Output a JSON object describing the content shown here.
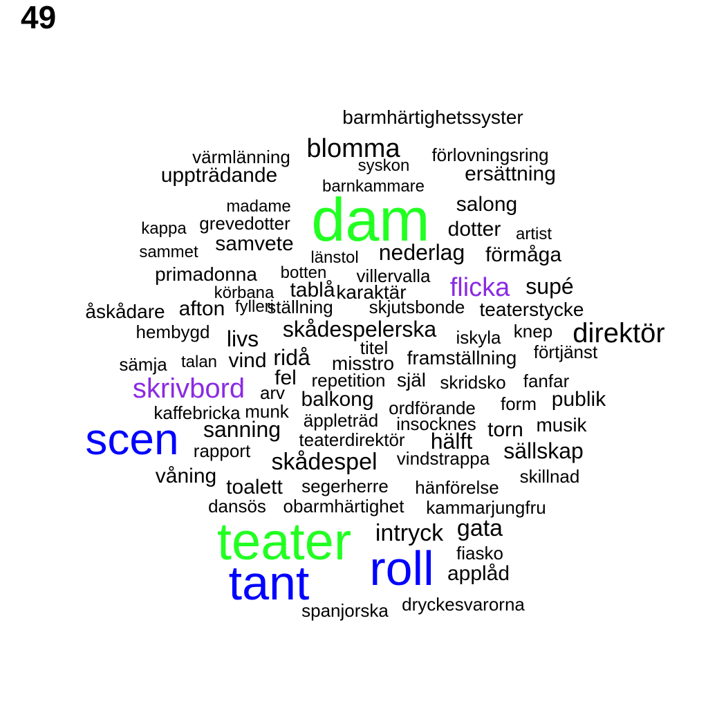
{
  "page_number": "49",
  "palette": {
    "default": "#000000",
    "green": "#22ff22",
    "blue": "#0000ff",
    "purple": "#8a2be2"
  },
  "words": [
    {
      "text": "barmhärtighetssyster",
      "color": "default"
    },
    {
      "text": "värmlänning",
      "color": "default"
    },
    {
      "text": "blomma",
      "color": "default"
    },
    {
      "text": "förlovningsring",
      "color": "default"
    },
    {
      "text": "syskon",
      "color": "default"
    },
    {
      "text": "uppträdande",
      "color": "default"
    },
    {
      "text": "ersättning",
      "color": "default"
    },
    {
      "text": "barnkammare",
      "color": "default"
    },
    {
      "text": "madame",
      "color": "default"
    },
    {
      "text": "dam",
      "color": "green"
    },
    {
      "text": "salong",
      "color": "default"
    },
    {
      "text": "kappa",
      "color": "default"
    },
    {
      "text": "grevedotter",
      "color": "default"
    },
    {
      "text": "dotter",
      "color": "default"
    },
    {
      "text": "artist",
      "color": "default"
    },
    {
      "text": "sammet",
      "color": "default"
    },
    {
      "text": "samvete",
      "color": "default"
    },
    {
      "text": "länstol",
      "color": "default"
    },
    {
      "text": "nederlag",
      "color": "default"
    },
    {
      "text": "förmåga",
      "color": "default"
    },
    {
      "text": "primadonna",
      "color": "default"
    },
    {
      "text": "botten",
      "color": "default"
    },
    {
      "text": "villervalla",
      "color": "default"
    },
    {
      "text": "körbana",
      "color": "default"
    },
    {
      "text": "tablå",
      "color": "default"
    },
    {
      "text": "karaktär",
      "color": "default"
    },
    {
      "text": "flicka",
      "color": "purple"
    },
    {
      "text": "supé",
      "color": "default"
    },
    {
      "text": "åskådare",
      "color": "default"
    },
    {
      "text": "afton",
      "color": "default"
    },
    {
      "text": "fylleri",
      "color": "default"
    },
    {
      "text": "ställning",
      "color": "default"
    },
    {
      "text": "skjutsbonde",
      "color": "default"
    },
    {
      "text": "teaterstycke",
      "color": "default"
    },
    {
      "text": "hembygd",
      "color": "default"
    },
    {
      "text": "skådespelerska",
      "color": "default"
    },
    {
      "text": "knep",
      "color": "default"
    },
    {
      "text": "livs",
      "color": "default"
    },
    {
      "text": "iskyla",
      "color": "default"
    },
    {
      "text": "direktör",
      "color": "default"
    },
    {
      "text": "titel",
      "color": "default"
    },
    {
      "text": "förtjänst",
      "color": "default"
    },
    {
      "text": "sämja",
      "color": "default"
    },
    {
      "text": "talan",
      "color": "default"
    },
    {
      "text": "vind",
      "color": "default"
    },
    {
      "text": "ridå",
      "color": "default"
    },
    {
      "text": "misstro",
      "color": "default"
    },
    {
      "text": "framställning",
      "color": "default"
    },
    {
      "text": "skrivbord",
      "color": "purple"
    },
    {
      "text": "fel",
      "color": "default"
    },
    {
      "text": "repetition",
      "color": "default"
    },
    {
      "text": "själ",
      "color": "default"
    },
    {
      "text": "skridsko",
      "color": "default"
    },
    {
      "text": "fanfar",
      "color": "default"
    },
    {
      "text": "arv",
      "color": "default"
    },
    {
      "text": "balkong",
      "color": "default"
    },
    {
      "text": "ordförande",
      "color": "default"
    },
    {
      "text": "form",
      "color": "default"
    },
    {
      "text": "publik",
      "color": "default"
    },
    {
      "text": "kaffebricka",
      "color": "default"
    },
    {
      "text": "munk",
      "color": "default"
    },
    {
      "text": "äppleträd",
      "color": "default"
    },
    {
      "text": "insocknes",
      "color": "default"
    },
    {
      "text": "musik",
      "color": "default"
    },
    {
      "text": "scen",
      "color": "blue"
    },
    {
      "text": "sanning",
      "color": "default"
    },
    {
      "text": "torn",
      "color": "default"
    },
    {
      "text": "teaterdirektör",
      "color": "default"
    },
    {
      "text": "hälft",
      "color": "default"
    },
    {
      "text": "rapport",
      "color": "default"
    },
    {
      "text": "sällskap",
      "color": "default"
    },
    {
      "text": "skådespel",
      "color": "default"
    },
    {
      "text": "vindstrappa",
      "color": "default"
    },
    {
      "text": "våning",
      "color": "default"
    },
    {
      "text": "skillnad",
      "color": "default"
    },
    {
      "text": "toalett",
      "color": "default"
    },
    {
      "text": "segerherre",
      "color": "default"
    },
    {
      "text": "hänförelse",
      "color": "default"
    },
    {
      "text": "dansös",
      "color": "default"
    },
    {
      "text": "obarmhärtighet",
      "color": "default"
    },
    {
      "text": "kammarjungfru",
      "color": "default"
    },
    {
      "text": "teater",
      "color": "green"
    },
    {
      "text": "intryck",
      "color": "default"
    },
    {
      "text": "gata",
      "color": "default"
    },
    {
      "text": "fiasko",
      "color": "default"
    },
    {
      "text": "roll",
      "color": "blue"
    },
    {
      "text": "tant",
      "color": "blue"
    },
    {
      "text": "applåd",
      "color": "default"
    },
    {
      "text": "spanjorska",
      "color": "default"
    },
    {
      "text": "dryckesvarorna",
      "color": "default"
    }
  ]
}
